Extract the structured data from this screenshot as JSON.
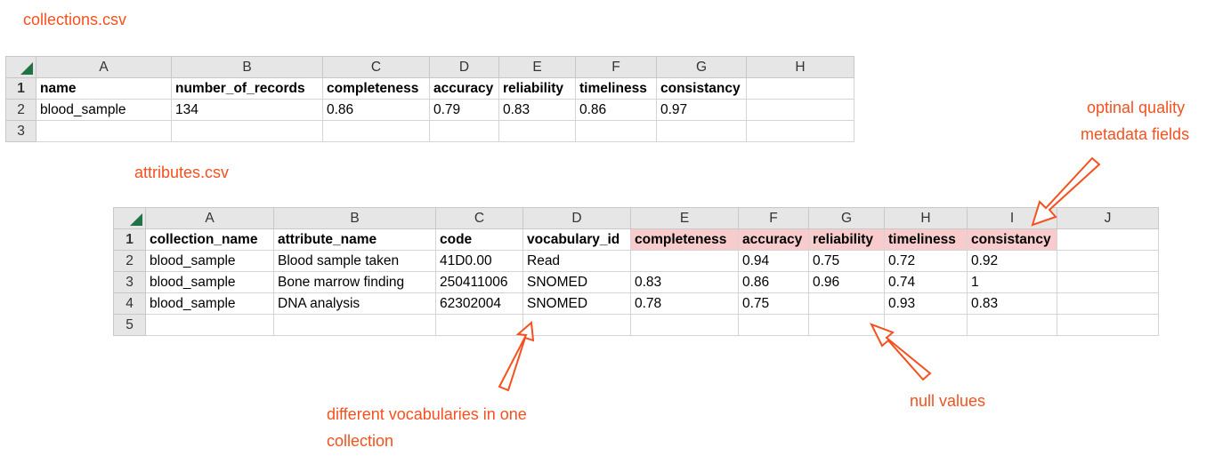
{
  "annotations": {
    "collections_file": "collections.csv",
    "attributes_file": "attributes.csv",
    "optional_fields_line1": "optinal quality",
    "optional_fields_line2": "metadata fields",
    "vocabularies_line1": "different vocabularies in one",
    "vocabularies_line2": "collection",
    "null_values": "null values"
  },
  "colors": {
    "annotation": "#f4511e",
    "highlight": "#f8cccc",
    "excel_green": "#217346"
  },
  "collections_sheet": {
    "column_letters": [
      "A",
      "B",
      "C",
      "D",
      "E",
      "F",
      "G",
      "H"
    ],
    "row_numbers": [
      "1",
      "2",
      "3"
    ],
    "header": [
      "name",
      "number_of_records",
      "completeness",
      "accuracy",
      "reliability",
      "timeliness",
      "consistancy",
      ""
    ],
    "rows": [
      [
        "blood_sample",
        "134",
        "0.86",
        "0.79",
        "0.83",
        "0.86",
        "0.97",
        ""
      ],
      [
        "",
        "",
        "",
        "",
        "",
        "",
        "",
        ""
      ]
    ]
  },
  "attributes_sheet": {
    "column_letters": [
      "A",
      "B",
      "C",
      "D",
      "E",
      "F",
      "G",
      "H",
      "I",
      "J"
    ],
    "row_numbers": [
      "1",
      "2",
      "3",
      "4",
      "5"
    ],
    "header": [
      "collection_name",
      "attribute_name",
      "code",
      "vocabulary_id",
      "completeness",
      "accuracy",
      "reliability",
      "timeliness",
      "consistancy",
      ""
    ],
    "rows": [
      [
        "blood_sample",
        "Blood sample taken",
        "41D0.00",
        "Read",
        "",
        "0.94",
        "0.75",
        "0.72",
        "0.92",
        ""
      ],
      [
        "blood_sample",
        "Bone marrow finding",
        "250411006",
        "SNOMED",
        "0.83",
        "0.86",
        "0.96",
        "0.74",
        "1",
        ""
      ],
      [
        "blood_sample",
        "DNA analysis",
        "62302004",
        "SNOMED",
        "0.78",
        "0.75",
        "",
        "0.93",
        "0.83",
        ""
      ],
      [
        "",
        "",
        "",
        "",
        "",
        "",
        "",
        "",
        "",
        ""
      ]
    ]
  }
}
